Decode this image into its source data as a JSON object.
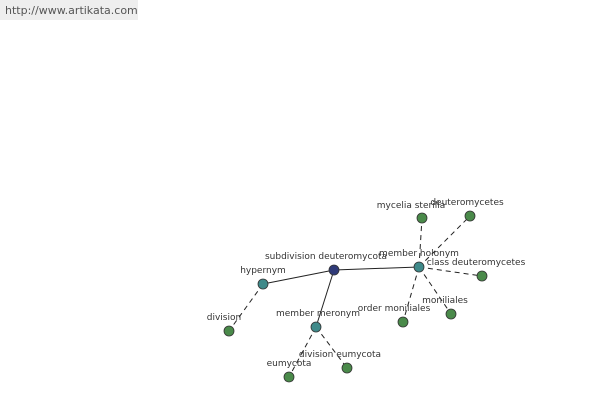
{
  "header": {
    "url": "http://www.artikata.com"
  },
  "nodes": [
    {
      "label": "subdivision deuteromycota"
    },
    {
      "label": "hypernym"
    },
    {
      "label": "member meronym"
    },
    {
      "label": "member holonym"
    },
    {
      "label": "division"
    },
    {
      "label": "eumycota"
    },
    {
      "label": "division eumycota"
    },
    {
      "label": "mycelia sterilia"
    },
    {
      "label": "deuteromycetes"
    },
    {
      "label": "class deuteromycetes"
    },
    {
      "label": "moniliales"
    },
    {
      "label": "order moniliales"
    }
  ]
}
